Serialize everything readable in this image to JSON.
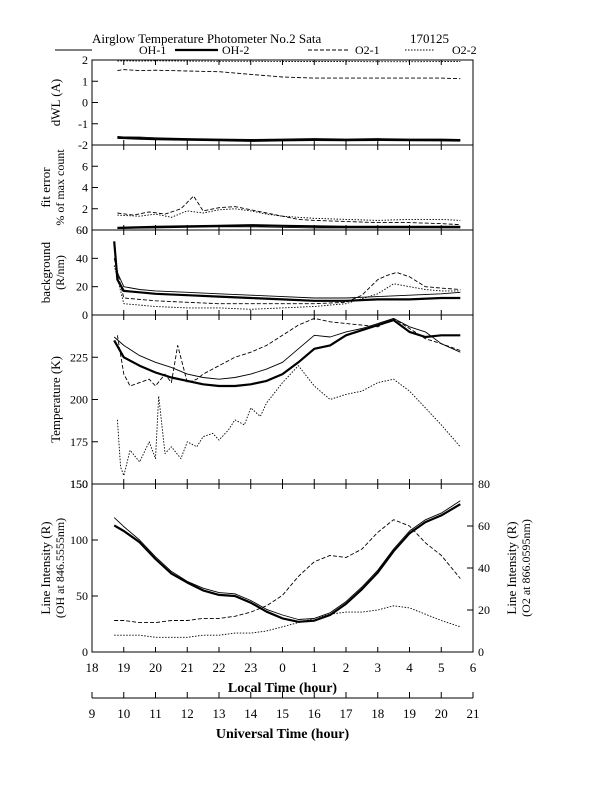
{
  "header": {
    "title": "Airglow Temperature Photometer No.2  Sata",
    "date_code": "170125"
  },
  "legend": [
    {
      "name": "OH-1",
      "style": "thin-solid"
    },
    {
      "name": "OH-2",
      "style": "thick-solid"
    },
    {
      "name": "O2-1",
      "style": "dashed"
    },
    {
      "name": "O2-2",
      "style": "dotted"
    }
  ],
  "colors": {
    "ink": "#000000",
    "background": "#ffffff"
  },
  "chart_data": [
    {
      "type": "line",
      "panel": "dwl",
      "ylabel": "dWL (A)",
      "ylim": [
        -2,
        2
      ],
      "yticks": [
        -2,
        -1,
        0,
        1,
        2
      ],
      "series": [
        {
          "name": "OH-1",
          "x": [
            18.8,
            19.0,
            19.5,
            20.0,
            21.0,
            22.0,
            23.0,
            0.0,
            1.0,
            2.0,
            3.0,
            4.0,
            5.0,
            5.6
          ],
          "y": [
            -1.6,
            -1.62,
            -1.63,
            -1.66,
            -1.7,
            -1.72,
            -1.74,
            -1.72,
            -1.7,
            -1.72,
            -1.7,
            -1.72,
            -1.72,
            -1.74
          ]
        },
        {
          "name": "OH-2",
          "x": [
            18.8,
            19.0,
            19.5,
            20.0,
            21.0,
            22.0,
            23.0,
            0.0,
            1.0,
            2.0,
            3.0,
            4.0,
            5.0,
            5.6
          ],
          "y": [
            -1.66,
            -1.67,
            -1.7,
            -1.72,
            -1.75,
            -1.77,
            -1.8,
            -1.78,
            -1.76,
            -1.77,
            -1.76,
            -1.77,
            -1.78,
            -1.79
          ]
        },
        {
          "name": "O2-1",
          "x": [
            18.8,
            19.0,
            19.5,
            20.0,
            21.0,
            22.0,
            23.0,
            0.0,
            1.0,
            2.0,
            3.0,
            4.0,
            5.0,
            5.6
          ],
          "y": [
            1.5,
            1.55,
            1.5,
            1.52,
            1.48,
            1.45,
            1.32,
            1.2,
            1.15,
            1.15,
            1.15,
            1.15,
            1.15,
            1.12
          ]
        },
        {
          "name": "O2-2",
          "x": [
            18.8,
            19.0,
            19.5,
            20.0,
            21.0,
            22.0,
            23.0,
            0.0,
            1.0,
            2.0,
            3.0,
            4.0,
            5.0,
            5.6
          ],
          "y": [
            1.95,
            1.96,
            1.95,
            1.96,
            1.95,
            1.94,
            1.94,
            1.93,
            1.93,
            1.93,
            1.92,
            1.92,
            1.93,
            1.93
          ]
        }
      ]
    },
    {
      "type": "line",
      "panel": "fit_error",
      "ylabel": "fit error",
      "ylabel2": "% of max count",
      "ylim": [
        0,
        8
      ],
      "yticks": [
        0,
        2,
        4,
        6
      ],
      "series": [
        {
          "name": "OH-1",
          "x": [
            18.8,
            20.0,
            21.0,
            22.0,
            23.0,
            0.0,
            1.0,
            2.0,
            3.0,
            4.0,
            5.0,
            5.6
          ],
          "y": [
            0.15,
            0.2,
            0.25,
            0.3,
            0.3,
            0.25,
            0.2,
            0.2,
            0.2,
            0.2,
            0.2,
            0.2
          ]
        },
        {
          "name": "OH-2",
          "x": [
            18.8,
            20.0,
            21.0,
            22.0,
            23.0,
            0.0,
            1.0,
            2.0,
            3.0,
            4.0,
            5.0,
            5.6
          ],
          "y": [
            0.2,
            0.3,
            0.35,
            0.4,
            0.45,
            0.4,
            0.35,
            0.3,
            0.3,
            0.3,
            0.3,
            0.3
          ]
        },
        {
          "name": "O2-1",
          "x": [
            18.8,
            19.3,
            19.8,
            20.3,
            20.8,
            21.2,
            21.5,
            22.0,
            22.5,
            23.0,
            23.5,
            0.0,
            0.5,
            1.0,
            2.0,
            3.0,
            4.0,
            5.0,
            5.6
          ],
          "y": [
            1.6,
            1.4,
            1.7,
            1.5,
            2.0,
            3.2,
            1.8,
            2.1,
            2.2,
            1.9,
            1.6,
            1.3,
            1.0,
            0.9,
            0.8,
            0.7,
            0.7,
            0.6,
            0.5
          ]
        },
        {
          "name": "O2-2",
          "x": [
            18.8,
            19.5,
            20.0,
            20.5,
            21.0,
            21.5,
            22.0,
            22.5,
            23.0,
            23.5,
            0.0,
            0.5,
            1.0,
            2.0,
            3.0,
            4.0,
            5.0,
            5.6
          ],
          "y": [
            1.4,
            1.3,
            1.5,
            1.2,
            1.8,
            1.6,
            1.9,
            2.0,
            1.8,
            1.5,
            1.3,
            1.2,
            1.1,
            1.0,
            0.9,
            1.0,
            1.0,
            0.9
          ]
        }
      ]
    },
    {
      "type": "line",
      "panel": "background",
      "ylabel": "background",
      "ylabel2": "(R/nm)",
      "ylim": [
        0,
        60
      ],
      "yticks": [
        0,
        20,
        40,
        60
      ],
      "series": [
        {
          "name": "OH-1",
          "x": [
            18.7,
            18.8,
            19.0,
            19.5,
            20.0,
            21.0,
            22.0,
            23.0,
            0.0,
            1.0,
            2.0,
            3.0,
            4.0,
            5.0,
            5.6
          ],
          "y": [
            50,
            30,
            20,
            18,
            17,
            16,
            15,
            14,
            13,
            12,
            12,
            13,
            14,
            15,
            16
          ]
        },
        {
          "name": "OH-2",
          "x": [
            18.7,
            18.8,
            19.0,
            19.5,
            20.0,
            21.0,
            22.0,
            23.0,
            0.0,
            1.0,
            2.0,
            3.0,
            4.0,
            5.0,
            5.6
          ],
          "y": [
            52,
            25,
            17,
            16,
            15,
            14,
            13,
            12,
            11,
            10,
            10,
            11,
            11,
            12,
            12
          ]
        },
        {
          "name": "O2-1",
          "x": [
            18.7,
            19.0,
            20.0,
            21.0,
            22.0,
            23.0,
            0.0,
            1.0,
            2.0,
            2.5,
            3.0,
            3.3,
            3.6,
            4.0,
            4.5,
            5.0,
            5.6
          ],
          "y": [
            40,
            12,
            10,
            9,
            8,
            8,
            8,
            8,
            9,
            14,
            25,
            28,
            30,
            27,
            20,
            19,
            18
          ]
        },
        {
          "name": "O2-2",
          "x": [
            18.7,
            19.0,
            20.0,
            21.0,
            22.0,
            23.0,
            0.0,
            1.0,
            2.0,
            3.0,
            3.5,
            4.0,
            4.5,
            5.0,
            5.6
          ],
          "y": [
            35,
            8,
            6,
            5,
            5,
            4,
            5,
            6,
            8,
            15,
            22,
            20,
            18,
            17,
            17
          ]
        }
      ]
    },
    {
      "type": "line",
      "panel": "temperature",
      "ylabel": "Temperature (K)",
      "ylim": [
        150,
        250
      ],
      "yticks": [
        150,
        175,
        200,
        225
      ],
      "series": [
        {
          "name": "OH-1",
          "x": [
            18.7,
            19.0,
            19.5,
            20.0,
            20.5,
            21.0,
            21.5,
            22.0,
            22.5,
            23.0,
            23.5,
            0.0,
            0.5,
            1.0,
            1.5,
            2.0,
            2.5,
            3.0,
            3.5,
            4.0,
            4.5,
            5.0,
            5.6
          ],
          "y": [
            237,
            232,
            226,
            222,
            219,
            215,
            213,
            212,
            213,
            215,
            218,
            222,
            230,
            238,
            237,
            240,
            242,
            245,
            248,
            243,
            240,
            233,
            228
          ]
        },
        {
          "name": "OH-2",
          "x": [
            18.7,
            19.0,
            19.5,
            20.0,
            20.5,
            21.0,
            21.5,
            22.0,
            22.5,
            23.0,
            23.5,
            0.0,
            0.5,
            1.0,
            1.5,
            2.0,
            2.5,
            3.0,
            3.5,
            4.0,
            4.5,
            5.0,
            5.6
          ],
          "y": [
            235,
            225,
            220,
            216,
            213,
            211,
            209,
            208,
            208,
            209,
            211,
            215,
            222,
            230,
            232,
            238,
            241,
            244,
            247,
            240,
            237,
            238,
            238
          ]
        },
        {
          "name": "O2-1",
          "x": [
            18.8,
            19.0,
            19.2,
            19.5,
            19.8,
            20.0,
            20.3,
            20.5,
            20.7,
            21.0,
            21.3,
            21.5,
            22.0,
            22.5,
            23.0,
            23.5,
            0.0,
            0.5,
            1.0,
            1.5,
            2.0,
            2.5,
            3.0,
            3.5,
            4.0,
            4.5,
            5.0,
            5.6
          ],
          "y": [
            238,
            215,
            208,
            210,
            212,
            208,
            215,
            210,
            232,
            210,
            212,
            215,
            220,
            225,
            228,
            232,
            238,
            244,
            248,
            246,
            245,
            244,
            243,
            248,
            242,
            236,
            233,
            229
          ]
        },
        {
          "name": "O2-2",
          "x": [
            18.8,
            18.9,
            19.0,
            19.2,
            19.5,
            19.8,
            20.0,
            20.1,
            20.3,
            20.5,
            20.8,
            21.0,
            21.3,
            21.5,
            21.8,
            22.0,
            22.3,
            22.5,
            22.8,
            23.0,
            23.3,
            23.5,
            0.0,
            0.5,
            1.0,
            1.5,
            2.0,
            2.5,
            3.0,
            3.5,
            4.0,
            4.5,
            5.0,
            5.6
          ],
          "y": [
            188,
            160,
            155,
            170,
            163,
            175,
            165,
            202,
            168,
            172,
            165,
            175,
            172,
            178,
            180,
            176,
            182,
            188,
            185,
            195,
            190,
            198,
            210,
            220,
            208,
            200,
            203,
            205,
            210,
            212,
            205,
            195,
            185,
            172
          ]
        }
      ]
    },
    {
      "type": "line",
      "panel": "line_intensity",
      "ylabel": "Line Intensity (R)",
      "ylabel2": "(OH at 846.5555nm)",
      "ylabel_right": "Line Intensity (R)",
      "ylabel_right2": "(O2 at 866.0595nm)",
      "ylim": [
        0,
        150
      ],
      "yticks": [
        0,
        50,
        100,
        150
      ],
      "y2lim": [
        0,
        80
      ],
      "y2ticks": [
        0,
        20,
        40,
        60,
        80
      ],
      "xlabel": "Local Time (hour)",
      "xlim": [
        18,
        30
      ],
      "xticks": [
        "18",
        "19",
        "20",
        "21",
        "22",
        "23",
        "0",
        "1",
        "2",
        "3",
        "4",
        "5",
        "6"
      ],
      "x2label": "Universal Time (hour)",
      "x2ticks": [
        "9",
        "10",
        "11",
        "12",
        "13",
        "14",
        "15",
        "16",
        "17",
        "18",
        "19",
        "20",
        "21"
      ],
      "series": [
        {
          "name": "OH-1",
          "axis": "left",
          "x": [
            18.7,
            19.0,
            19.5,
            20.0,
            20.5,
            21.0,
            21.5,
            22.0,
            22.5,
            23.0,
            23.5,
            0.0,
            0.5,
            1.0,
            1.5,
            2.0,
            2.5,
            3.0,
            3.5,
            4.0,
            4.5,
            5.0,
            5.6
          ],
          "y": [
            120,
            112,
            100,
            85,
            72,
            63,
            57,
            53,
            52,
            46,
            38,
            33,
            29,
            30,
            35,
            45,
            58,
            73,
            92,
            108,
            118,
            124,
            135
          ]
        },
        {
          "name": "OH-2",
          "axis": "left",
          "x": [
            18.7,
            19.0,
            19.5,
            20.0,
            20.5,
            21.0,
            21.5,
            22.0,
            22.5,
            23.0,
            23.5,
            0.0,
            0.5,
            1.0,
            1.5,
            2.0,
            2.5,
            3.0,
            3.5,
            4.0,
            4.5,
            5.0,
            5.6
          ],
          "y": [
            113,
            108,
            98,
            83,
            70,
            62,
            55,
            51,
            50,
            44,
            36,
            30,
            27,
            28,
            33,
            43,
            56,
            71,
            90,
            106,
            116,
            122,
            132
          ]
        },
        {
          "name": "O2-1",
          "axis": "right",
          "x": [
            18.7,
            19.0,
            19.5,
            20.0,
            20.5,
            21.0,
            21.5,
            22.0,
            22.5,
            23.0,
            23.5,
            0.0,
            0.5,
            1.0,
            1.5,
            2.0,
            2.5,
            3.0,
            3.5,
            4.0,
            4.5,
            5.0,
            5.6
          ],
          "y": [
            15,
            15,
            14,
            14,
            15,
            15,
            16,
            16,
            17,
            19,
            22,
            27,
            36,
            43,
            46,
            45,
            49,
            57,
            63,
            60,
            52,
            46,
            35
          ]
        },
        {
          "name": "O2-2",
          "axis": "right",
          "x": [
            18.7,
            19.0,
            19.5,
            20.0,
            20.5,
            21.0,
            21.5,
            22.0,
            22.5,
            23.0,
            23.5,
            0.0,
            0.5,
            1.0,
            1.5,
            2.0,
            2.5,
            3.0,
            3.5,
            4.0,
            4.5,
            5.0,
            5.6
          ],
          "y": [
            8,
            8,
            8,
            7,
            7,
            7,
            8,
            8,
            9,
            9,
            10,
            12,
            14,
            16,
            18,
            19,
            19,
            20,
            22,
            21,
            18,
            15,
            12
          ]
        }
      ]
    }
  ]
}
